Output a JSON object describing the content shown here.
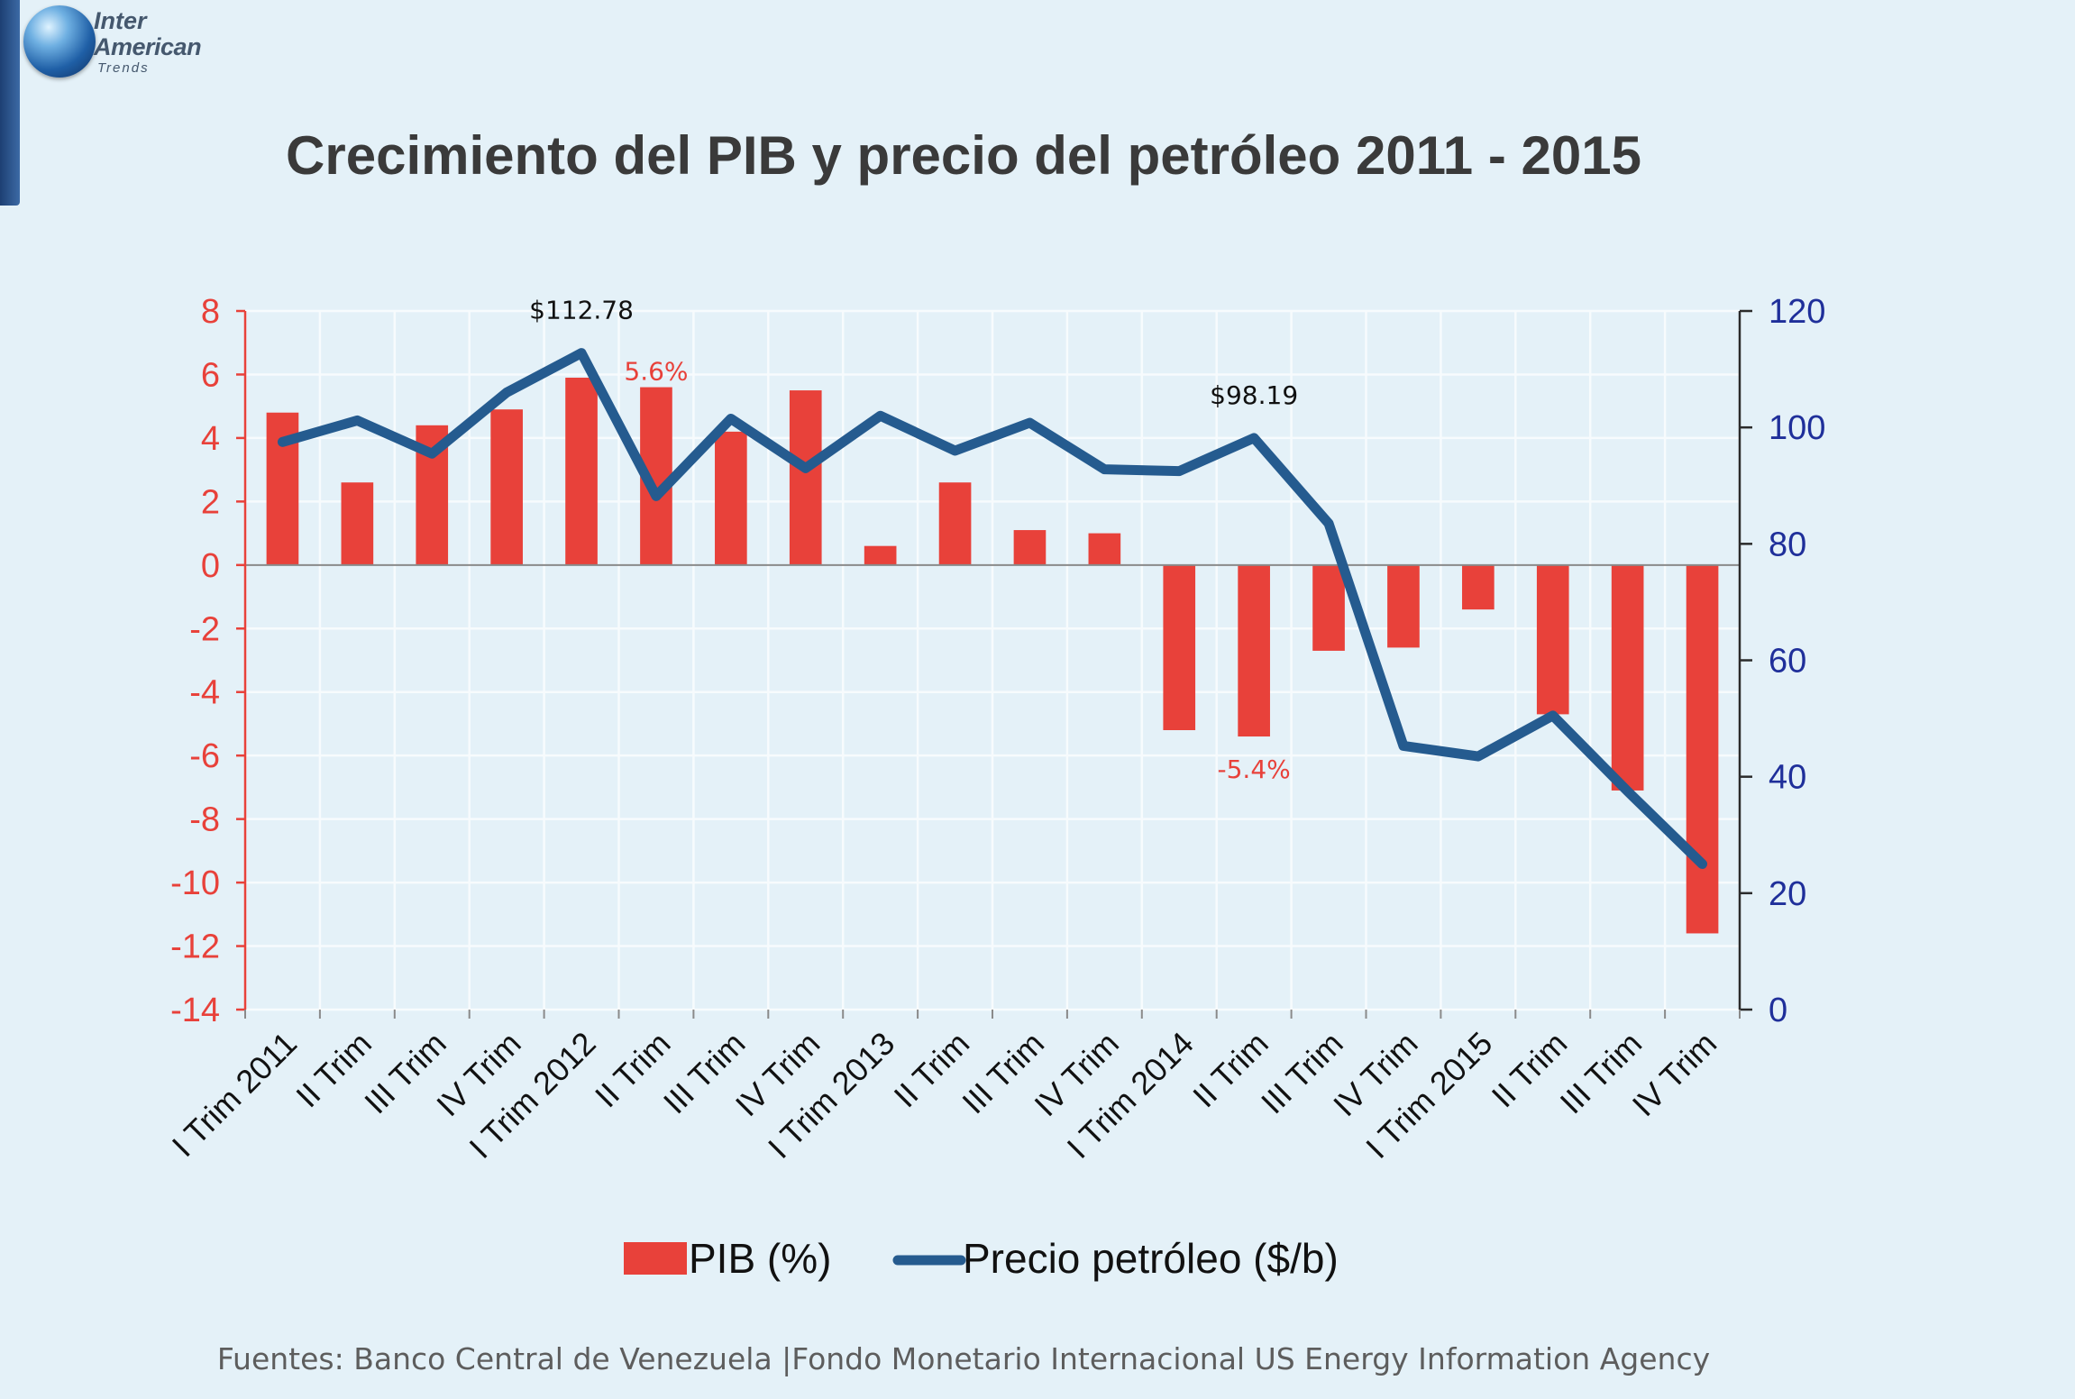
{
  "logo": {
    "line1": "Inter",
    "line2": "American",
    "line3": "Trends"
  },
  "title": "Crecimiento del PIB y precio del petróleo 2011 - 2015",
  "source": "Fuentes: Banco Central de Venezuela |Fondo Monetario Internacional US Energy Information Agency",
  "chart_data": {
    "type": "bar",
    "categories": [
      "I Trim 2011",
      "II Trim",
      "III Trim",
      "IV Trim",
      "I Trim 2012",
      "II Trim",
      "III Trim",
      "IV Trim",
      "I Trim 2013",
      "II Trim",
      "III Trim",
      "IV Trim",
      "I Trim 2014",
      "II Trim",
      "III Trim",
      "IV Trim",
      "I Trim 2015",
      "II Trim",
      "III Trim",
      "IV Trim"
    ],
    "series": [
      {
        "name": "PIB (%)",
        "type": "bar",
        "axis": "left",
        "color": "#e8413a",
        "values": [
          4.8,
          2.6,
          4.4,
          4.9,
          5.9,
          5.6,
          4.2,
          5.5,
          0.6,
          2.6,
          1.1,
          1.0,
          -5.2,
          -5.4,
          -2.7,
          -2.6,
          -1.4,
          -4.7,
          -7.1,
          -11.6
        ]
      },
      {
        "name": "Precio petróleo ($/b)",
        "type": "line",
        "axis": "right",
        "color": "#255b8f",
        "values": [
          97.5,
          101.2,
          95.5,
          106.0,
          112.78,
          88.2,
          101.5,
          93.0,
          102.0,
          96.0,
          100.8,
          92.8,
          92.5,
          98.19,
          83.5,
          45.3,
          43.5,
          50.5,
          37.5,
          25.0
        ]
      }
    ],
    "y_left": {
      "min": -14,
      "max": 8,
      "step": 2,
      "color": "#e8413a",
      "ticks": [
        "8",
        "6",
        "4",
        "2",
        "0",
        "-2",
        "-4",
        "-6",
        "-8",
        "-10",
        "-12",
        "-14"
      ]
    },
    "y_right": {
      "min": 0,
      "max": 120,
      "step": 20,
      "color": "#1f2f9a",
      "ticks": [
        "120",
        "100",
        "80",
        "60",
        "40",
        "20",
        "0"
      ]
    },
    "grid": true,
    "legend": {
      "position": "bottom-center",
      "items": [
        "PIB (%)",
        "Precio petróleo ($/b)"
      ]
    },
    "annotations": [
      {
        "text": "$112.78",
        "series": 1,
        "index": 4,
        "color": "#111111"
      },
      {
        "text": "5.6%",
        "series": 0,
        "index": 5,
        "color": "#e8413a"
      },
      {
        "text": "$98.19",
        "series": 1,
        "index": 13,
        "color": "#111111"
      },
      {
        "text": "-5.4%",
        "series": 0,
        "index": 13,
        "color": "#e8413a"
      }
    ]
  }
}
